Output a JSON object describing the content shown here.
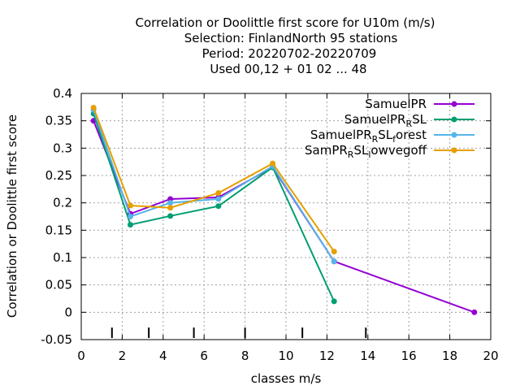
{
  "chart_data": {
    "type": "line",
    "title_lines": [
      "Correlation or Doolittle first score  for U10m (m/s)",
      "Selection: FinlandNorth     95 stations",
      "Period: 20220702-20220709",
      "Used  00,12  + 01 02 ... 48"
    ],
    "xlabel": "classes m/s",
    "ylabel": "Correlation or Doolittle first score",
    "xlim": [
      0,
      20
    ],
    "ylim": [
      -0.05,
      0.4
    ],
    "x_ticks": [
      0,
      2,
      4,
      6,
      8,
      10,
      12,
      14,
      16,
      18,
      20
    ],
    "x_tick_labels": [
      "0",
      "2",
      "4",
      "6",
      "8",
      "10",
      "12",
      "14",
      "16",
      "18",
      "20"
    ],
    "y_ticks": [
      -0.05,
      0,
      0.05,
      0.1,
      0.15,
      0.2,
      0.25,
      0.3,
      0.35,
      0.4
    ],
    "y_tick_labels": [
      "-0.05",
      "0",
      "0.05",
      "0.1",
      "0.15",
      "0.2",
      "0.25",
      "0.3",
      "0.35",
      "0.4"
    ],
    "grid": true,
    "legend_position": "top-right",
    "class_boundaries": [
      1.5,
      3.3,
      5.5,
      8.0,
      10.8,
      13.9
    ],
    "series": [
      {
        "name": "SamuelPR",
        "name_parts": [
          {
            "t": "SamuelPR",
            "sub": false
          }
        ],
        "color": "#9400d3",
        "x": [
          0.6,
          2.4,
          4.35,
          6.7,
          9.35,
          12.35,
          19.2
        ],
        "y": [
          0.35,
          0.18,
          0.207,
          0.21,
          0.265,
          0.093,
          0.0
        ]
      },
      {
        "name": "SamuelPR_RSL",
        "name_parts": [
          {
            "t": "SamuelPR",
            "sub": false
          },
          {
            "t": "R",
            "sub": true
          },
          {
            "t": "SL",
            "sub": false
          }
        ],
        "color": "#009e73",
        "x": [
          0.6,
          2.4,
          4.35,
          6.7,
          9.35,
          12.35
        ],
        "y": [
          0.363,
          0.16,
          0.176,
          0.194,
          0.265,
          0.02
        ]
      },
      {
        "name": "SamuelPR_RSL_forest",
        "name_parts": [
          {
            "t": "SamuelPR",
            "sub": false
          },
          {
            "t": "R",
            "sub": true
          },
          {
            "t": "SL",
            "sub": false
          },
          {
            "t": "f",
            "sub": true
          },
          {
            "t": "orest",
            "sub": false
          }
        ],
        "color": "#56b4e9",
        "x": [
          0.6,
          2.4,
          4.35,
          6.7,
          9.35,
          12.35
        ],
        "y": [
          0.37,
          0.175,
          0.2,
          0.207,
          0.267,
          0.093
        ]
      },
      {
        "name": "SamPR_RSL_lowvegoff",
        "name_parts": [
          {
            "t": "SamPR",
            "sub": false
          },
          {
            "t": "R",
            "sub": true
          },
          {
            "t": "SL",
            "sub": false
          },
          {
            "t": "l",
            "sub": true
          },
          {
            "t": "owvegoff",
            "sub": false
          }
        ],
        "color": "#e69f00",
        "x": [
          0.6,
          2.4,
          4.35,
          6.7,
          9.35,
          12.35
        ],
        "y": [
          0.374,
          0.195,
          0.191,
          0.218,
          0.272,
          0.111
        ]
      }
    ]
  }
}
